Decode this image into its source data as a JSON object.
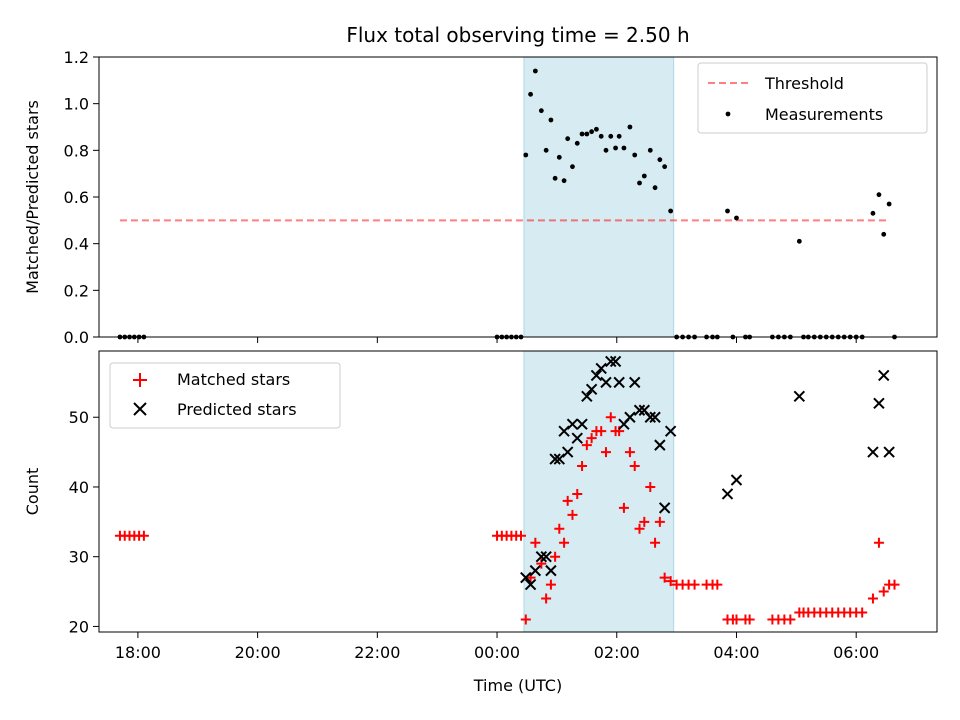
{
  "chart_data": {
    "title": "Flux total observing time = 2.50 h",
    "xlabel": "Time (UTC)",
    "x_unit": "hours UTC (hours past 00:00 of second day; negative = previous evening)",
    "xlim": [
      -6.65,
      7.35
    ],
    "x_ticks": [
      {
        "value": -6,
        "label": "18:00"
      },
      {
        "value": -4,
        "label": "20:00"
      },
      {
        "value": -2,
        "label": "22:00"
      },
      {
        "value": 0,
        "label": "00:00"
      },
      {
        "value": 2,
        "label": "02:00"
      },
      {
        "value": 4,
        "label": "04:00"
      },
      {
        "value": 6,
        "label": "06:00"
      }
    ],
    "highlight_span": {
      "x_start": 0.45,
      "x_end": 2.95,
      "color": "#add8e6"
    },
    "panels": [
      {
        "type": "scatter",
        "ylabel": "Matched/Predicted stars",
        "ylim": [
          0,
          1.2
        ],
        "y_ticks": [
          "0.0",
          "0.2",
          "0.4",
          "0.6",
          "0.8",
          "1.0",
          "1.2"
        ],
        "legend_position": "top-right",
        "threshold": {
          "name": "Threshold",
          "y": 0.5,
          "x_start": -6.3,
          "x_end": 6.55,
          "color": "#ff0000"
        },
        "series": [
          {
            "name": "Measurements",
            "marker": "dot",
            "color": "#000000",
            "points": [
              [
                -6.3,
                0
              ],
              [
                -6.22,
                0
              ],
              [
                -6.14,
                0
              ],
              [
                -6.06,
                0
              ],
              [
                -5.98,
                0
              ],
              [
                -5.9,
                0
              ],
              [
                0.0,
                0
              ],
              [
                0.08,
                0
              ],
              [
                0.16,
                0
              ],
              [
                0.24,
                0
              ],
              [
                0.32,
                0
              ],
              [
                0.4,
                0
              ],
              [
                0.48,
                0.78
              ],
              [
                0.56,
                1.04
              ],
              [
                0.64,
                1.14
              ],
              [
                0.74,
                0.97
              ],
              [
                0.82,
                0.8
              ],
              [
                0.9,
                0.93
              ],
              [
                0.97,
                0.68
              ],
              [
                1.04,
                0.77
              ],
              [
                1.12,
                0.67
              ],
              [
                1.18,
                0.85
              ],
              [
                1.26,
                0.73
              ],
              [
                1.34,
                0.83
              ],
              [
                1.42,
                0.87
              ],
              [
                1.5,
                0.87
              ],
              [
                1.58,
                0.88
              ],
              [
                1.66,
                0.89
              ],
              [
                1.74,
                0.86
              ],
              [
                1.82,
                0.8
              ],
              [
                1.9,
                0.86
              ],
              [
                1.98,
                0.81
              ],
              [
                2.04,
                0.86
              ],
              [
                2.12,
                0.81
              ],
              [
                2.22,
                0.9
              ],
              [
                2.3,
                0.78
              ],
              [
                2.38,
                0.66
              ],
              [
                2.46,
                0.69
              ],
              [
                2.56,
                0.8
              ],
              [
                2.64,
                0.64
              ],
              [
                2.72,
                0.76
              ],
              [
                2.8,
                0.73
              ],
              [
                2.9,
                0.54
              ],
              [
                3.0,
                0
              ],
              [
                3.1,
                0
              ],
              [
                3.2,
                0
              ],
              [
                3.3,
                0
              ],
              [
                3.5,
                0
              ],
              [
                3.6,
                0
              ],
              [
                3.68,
                0
              ],
              [
                3.85,
                0.54
              ],
              [
                3.94,
                0
              ],
              [
                4.0,
                0.51
              ],
              [
                4.15,
                0
              ],
              [
                4.22,
                0
              ],
              [
                4.6,
                0
              ],
              [
                4.7,
                0
              ],
              [
                4.8,
                0
              ],
              [
                4.9,
                0
              ],
              [
                5.05,
                0.41
              ],
              [
                5.12,
                0
              ],
              [
                5.2,
                0
              ],
              [
                5.3,
                0
              ],
              [
                5.4,
                0
              ],
              [
                5.5,
                0
              ],
              [
                5.6,
                0
              ],
              [
                5.7,
                0
              ],
              [
                5.8,
                0
              ],
              [
                5.9,
                0
              ],
              [
                6.0,
                0
              ],
              [
                6.1,
                0
              ],
              [
                6.28,
                0.53
              ],
              [
                6.38,
                0.61
              ],
              [
                6.46,
                0.44
              ],
              [
                6.55,
                0.57
              ],
              [
                6.64,
                0
              ]
            ]
          }
        ]
      },
      {
        "type": "scatter",
        "ylabel": "Count",
        "ylim": [
          19.2,
          59.5
        ],
        "y_ticks": [
          "20",
          "30",
          "40",
          "50"
        ],
        "legend_position": "top-left",
        "series": [
          {
            "name": "Matched stars",
            "marker": "plus",
            "color": "#ff0000",
            "points": [
              [
                -6.3,
                33
              ],
              [
                -6.22,
                33
              ],
              [
                -6.14,
                33
              ],
              [
                -6.06,
                33
              ],
              [
                -5.98,
                33
              ],
              [
                -5.9,
                33
              ],
              [
                0.0,
                33
              ],
              [
                0.08,
                33
              ],
              [
                0.16,
                33
              ],
              [
                0.24,
                33
              ],
              [
                0.32,
                33
              ],
              [
                0.4,
                33
              ],
              [
                0.48,
                21
              ],
              [
                0.56,
                27
              ],
              [
                0.64,
                32
              ],
              [
                0.74,
                29
              ],
              [
                0.82,
                24
              ],
              [
                0.9,
                26
              ],
              [
                0.97,
                30
              ],
              [
                1.04,
                34
              ],
              [
                1.12,
                32
              ],
              [
                1.18,
                38
              ],
              [
                1.26,
                36
              ],
              [
                1.34,
                39
              ],
              [
                1.42,
                43
              ],
              [
                1.5,
                46
              ],
              [
                1.58,
                47
              ],
              [
                1.66,
                48
              ],
              [
                1.74,
                48
              ],
              [
                1.82,
                45
              ],
              [
                1.9,
                50
              ],
              [
                1.98,
                48
              ],
              [
                2.04,
                48
              ],
              [
                2.12,
                37
              ],
              [
                2.22,
                45
              ],
              [
                2.3,
                43
              ],
              [
                2.38,
                34
              ],
              [
                2.46,
                35
              ],
              [
                2.56,
                40
              ],
              [
                2.64,
                32
              ],
              [
                2.72,
                35
              ],
              [
                2.8,
                27
              ],
              [
                2.9,
                26.5
              ],
              [
                3.0,
                26
              ],
              [
                3.1,
                26
              ],
              [
                3.2,
                26
              ],
              [
                3.3,
                26
              ],
              [
                3.5,
                26
              ],
              [
                3.6,
                26
              ],
              [
                3.68,
                26
              ],
              [
                3.85,
                21
              ],
              [
                3.94,
                21
              ],
              [
                4.0,
                21
              ],
              [
                4.15,
                21
              ],
              [
                4.22,
                21
              ],
              [
                4.6,
                21
              ],
              [
                4.7,
                21
              ],
              [
                4.8,
                21
              ],
              [
                4.9,
                21
              ],
              [
                5.05,
                22
              ],
              [
                5.12,
                22
              ],
              [
                5.2,
                22
              ],
              [
                5.3,
                22
              ],
              [
                5.4,
                22
              ],
              [
                5.5,
                22
              ],
              [
                5.6,
                22
              ],
              [
                5.7,
                22
              ],
              [
                5.8,
                22
              ],
              [
                5.9,
                22
              ],
              [
                6.0,
                22
              ],
              [
                6.1,
                22
              ],
              [
                6.28,
                24
              ],
              [
                6.38,
                32
              ],
              [
                6.46,
                25
              ],
              [
                6.55,
                26
              ],
              [
                6.64,
                26
              ]
            ]
          },
          {
            "name": "Predicted stars",
            "marker": "x",
            "color": "#000000",
            "points": [
              [
                0.48,
                27
              ],
              [
                0.56,
                26
              ],
              [
                0.64,
                28
              ],
              [
                0.74,
                30
              ],
              [
                0.82,
                30
              ],
              [
                0.9,
                28
              ],
              [
                0.97,
                44
              ],
              [
                1.04,
                44
              ],
              [
                1.12,
                48
              ],
              [
                1.18,
                45
              ],
              [
                1.26,
                49
              ],
              [
                1.34,
                47
              ],
              [
                1.42,
                49
              ],
              [
                1.5,
                53
              ],
              [
                1.58,
                54
              ],
              [
                1.66,
                56
              ],
              [
                1.74,
                57
              ],
              [
                1.82,
                55
              ],
              [
                1.9,
                58
              ],
              [
                1.98,
                58
              ],
              [
                2.04,
                55
              ],
              [
                2.12,
                49
              ],
              [
                2.22,
                50
              ],
              [
                2.3,
                55
              ],
              [
                2.38,
                51
              ],
              [
                2.46,
                51
              ],
              [
                2.56,
                50
              ],
              [
                2.64,
                50
              ],
              [
                2.72,
                46
              ],
              [
                2.8,
                37
              ],
              [
                2.9,
                48
              ],
              [
                3.85,
                39
              ],
              [
                4.0,
                41
              ],
              [
                5.05,
                53
              ],
              [
                6.28,
                45
              ],
              [
                6.38,
                52
              ],
              [
                6.46,
                56
              ],
              [
                6.55,
                45
              ]
            ]
          }
        ]
      }
    ]
  }
}
